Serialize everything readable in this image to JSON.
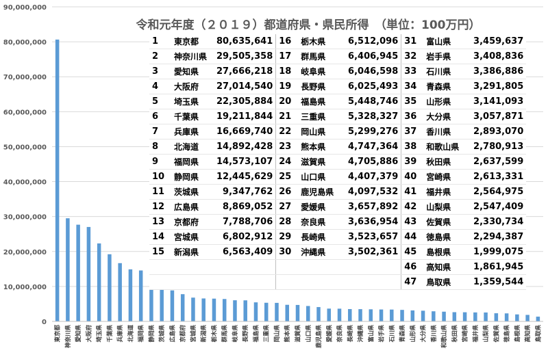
{
  "chart_data": {
    "type": "bar",
    "title": "令和元年度（２０１９）都道府県・県民所得　（単位：100万円）",
    "xlabel": "",
    "ylabel": "",
    "ylim": [
      0,
      90000000
    ],
    "yticks": [
      0,
      10000000,
      20000000,
      30000000,
      40000000,
      50000000,
      60000000,
      70000000,
      80000000,
      90000000
    ],
    "ytick_labels": [
      "0",
      "10,000,000",
      "20,000,000",
      "30,000,000",
      "40,000,000",
      "50,000,000",
      "60,000,000",
      "70,000,000",
      "80,000,000",
      "90,000,000"
    ],
    "grid": true,
    "bar_color": "#5b9bd5",
    "categories": [
      "東京都",
      "神奈川県",
      "愛知県",
      "大阪府",
      "埼玉県",
      "千葉県",
      "兵庫県",
      "北海道",
      "福岡県",
      "静岡県",
      "茨城県",
      "広島県",
      "京都府",
      "宮城県",
      "新潟県",
      "栃木県",
      "群馬県",
      "岐阜県",
      "長野県",
      "福島県",
      "三重県",
      "岡山県",
      "熊本県",
      "滋賀県",
      "山口県",
      "鹿児島県",
      "愛媛県",
      "奈良県",
      "長崎県",
      "沖縄県",
      "富山県",
      "岩手県",
      "石川県",
      "青森県",
      "山形県",
      "大分県",
      "香川県",
      "和歌山県",
      "秋田県",
      "宮崎県",
      "福井県",
      "山梨県",
      "佐賀県",
      "徳島県",
      "島根県",
      "高知県",
      "鳥取県"
    ],
    "values": [
      80635641,
      29505358,
      27666218,
      27014540,
      22305884,
      19211844,
      16669740,
      14892428,
      14573107,
      12445629,
      9347762,
      8869052,
      7788706,
      6802912,
      6563409,
      6512096,
      6406945,
      6046598,
      6025493,
      5448746,
      5328327,
      5299276,
      4747364,
      4705886,
      4407379,
      4097532,
      3657892,
      3636954,
      3523657,
      3502361,
      3459637,
      3408836,
      3386886,
      3291805,
      3141093,
      3057871,
      2893070,
      2780913,
      2637599,
      2613331,
      2564975,
      2547409,
      2330734,
      2294387,
      1999075,
      1861945,
      1359544
    ],
    "value_labels": [
      "80,635,641",
      "29,505,358",
      "27,666,218",
      "27,014,540",
      "22,305,884",
      "19,211,844",
      "16,669,740",
      "14,892,428",
      "14,573,107",
      "12,445,629",
      "9,347,762",
      "8,869,052",
      "7,788,706",
      "6,802,912",
      "6,563,409",
      "6,512,096",
      "6,406,945",
      "6,046,598",
      "6,025,493",
      "5,448,746",
      "5,328,327",
      "5,299,276",
      "4,747,364",
      "4,705,886",
      "4,407,379",
      "4,097,532",
      "3,657,892",
      "3,636,954",
      "3,523,657",
      "3,502,361",
      "3,459,637",
      "3,408,836",
      "3,386,886",
      "3,291,805",
      "3,141,093",
      "3,057,871",
      "2,893,070",
      "2,780,913",
      "2,637,599",
      "2,613,331",
      "2,564,975",
      "2,547,409",
      "2,330,734",
      "2,294,387",
      "1,999,075",
      "1,861,945",
      "1,359,544"
    ]
  }
}
